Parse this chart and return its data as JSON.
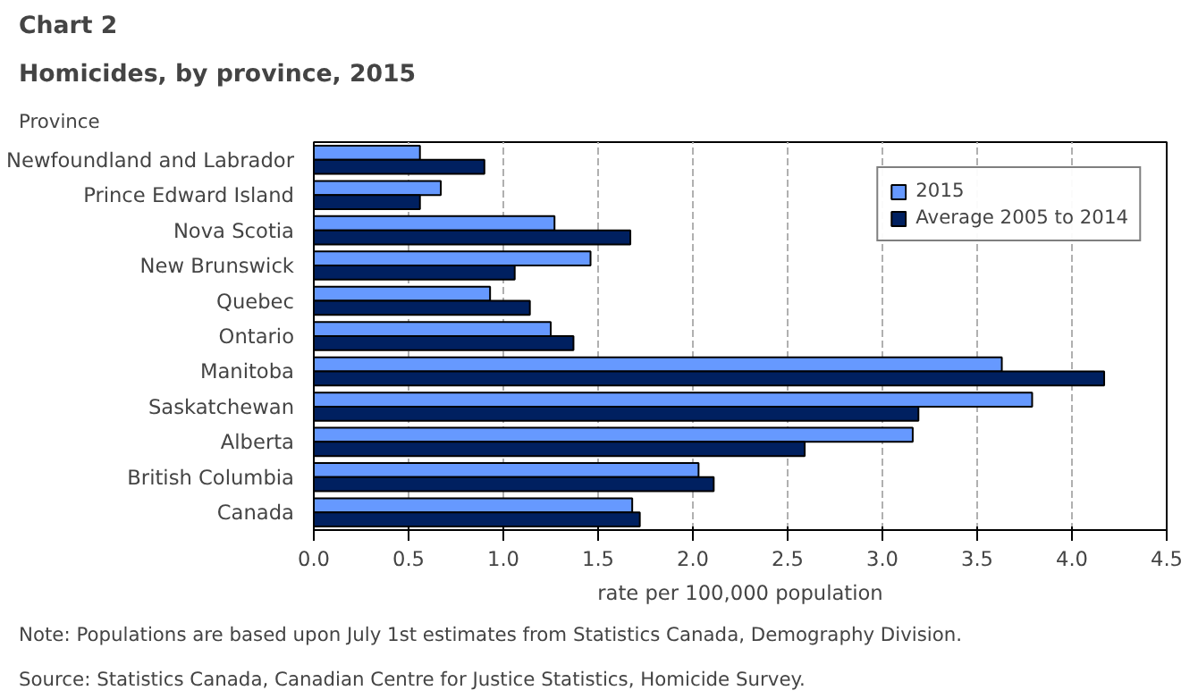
{
  "chart_data": {
    "type": "bar",
    "orientation": "horizontal",
    "title": "Chart 2",
    "subtitle": "Homicides, by province, 2015",
    "ylabel": "Province",
    "xlabel": "rate per 100,000 population",
    "categories": [
      "Newfoundland and Labrador",
      "Prince Edward Island",
      "Nova Scotia",
      "New Brunswick",
      "Quebec",
      "Ontario",
      "Manitoba",
      "Saskatchewan",
      "Alberta",
      "British Columbia",
      "Canada"
    ],
    "series": [
      {
        "name": "2015",
        "color": "#6699ff",
        "values": [
          0.56,
          0.67,
          1.27,
          1.46,
          0.93,
          1.25,
          3.63,
          3.79,
          3.16,
          2.03,
          1.68
        ]
      },
      {
        "name": "Average 2005 to 2014",
        "color": "#002060",
        "values": [
          0.9,
          0.56,
          1.67,
          1.06,
          1.14,
          1.37,
          4.17,
          3.19,
          2.59,
          2.11,
          1.72
        ]
      }
    ],
    "xlim": [
      0,
      4.5
    ],
    "xticks": [
      {
        "value": 0,
        "label": "0.0"
      },
      0.5,
      {
        "value": 1,
        "label": "1.0"
      },
      1.5,
      {
        "value": 2,
        "label": "2.0"
      },
      2.5,
      {
        "value": 3,
        "label": "3.0"
      },
      3.5,
      {
        "value": 4,
        "label": "4.0"
      },
      4.5
    ],
    "grid": "x",
    "legend": "top right",
    "annotations": [
      "Note: Populations are based upon July 1st estimates from Statistics Canada, Demography Division.",
      "Source: Statistics Canada, Canadian Centre for Justice Statistics, Homicide Survey."
    ]
  }
}
